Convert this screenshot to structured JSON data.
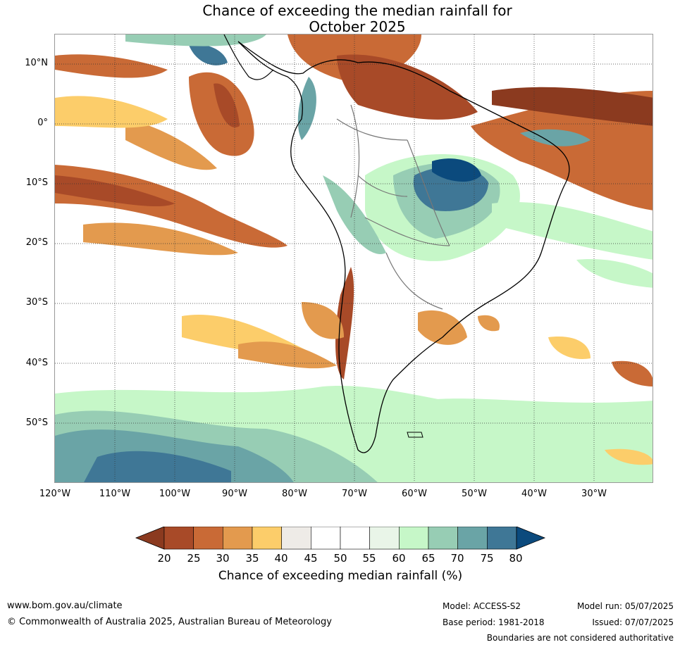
{
  "title_line1": "Chance of exceeding the median rainfall for",
  "title_line2": "October 2025",
  "latitude_labels": [
    "10°N",
    "0°",
    "10°S",
    "20°S",
    "30°S",
    "40°S",
    "50°S"
  ],
  "longitude_labels": [
    "120°W",
    "110°W",
    "100°W",
    "90°W",
    "80°W",
    "70°W",
    "60°W",
    "50°W",
    "40°W",
    "30°W"
  ],
  "colorbar": {
    "ticks": [
      "20",
      "25",
      "30",
      "35",
      "40",
      "45",
      "50",
      "55",
      "60",
      "65",
      "70",
      "75",
      "80"
    ],
    "colors": [
      "#8b3a1f",
      "#a84a28",
      "#c96a36",
      "#e39a4e",
      "#fccd6a",
      "#eeebe7",
      "#ffffff",
      "#ffffff",
      "#e9f5e8",
      "#c6f7c8",
      "#97cdb4",
      "#6aa4a6",
      "#3f7796",
      "#0b4a7d"
    ],
    "title": "Chance of exceeding median rainfall (%)"
  },
  "footer": {
    "url": "www.bom.gov.au/climate",
    "copyright": "© Commonwealth of Australia 2025, Australian Bureau of Meteorology",
    "model": "Model: ACCESS-S2",
    "base_period": "Base period: 1981-2018",
    "model_run": "Model run: 05/07/2025",
    "issued": "Issued: 07/07/2025",
    "disclaimer": "Boundaries are not considered authoritative"
  }
}
